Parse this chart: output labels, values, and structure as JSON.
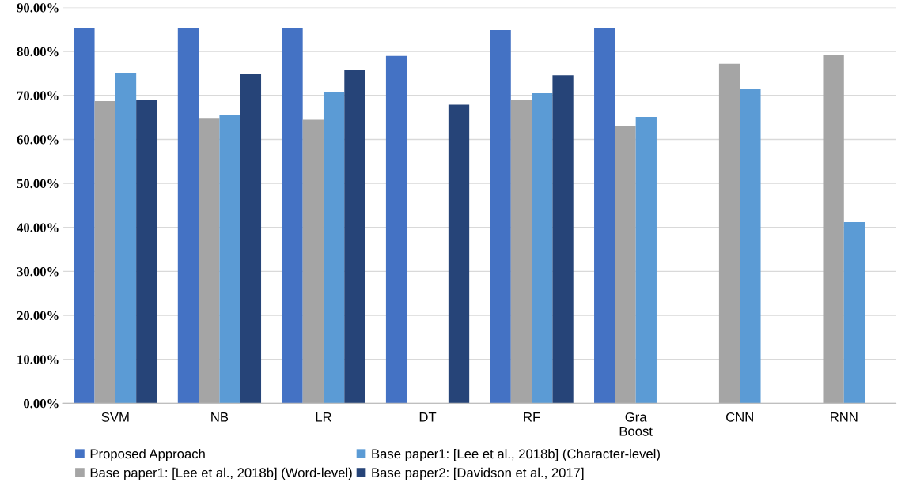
{
  "chart_data": {
    "type": "bar",
    "categories": [
      "SVM",
      "NB",
      "LR",
      "DT",
      "RF",
      "Gra\nBoost",
      "CNN",
      "RNN"
    ],
    "series": [
      {
        "name": "Proposed Approach",
        "color": "#4472c4",
        "values": [
          85.3,
          85.3,
          85.3,
          79.0,
          84.9,
          85.3,
          null,
          null
        ]
      },
      {
        "name": "Base paper1: [Lee et al., 2018b] (Word-level)",
        "color": "#a5a5a5",
        "values": [
          68.7,
          64.9,
          64.5,
          null,
          69.0,
          63.0,
          77.2,
          79.2
        ]
      },
      {
        "name": "Base paper1: [Lee et al., 2018b] (Character-level)",
        "color": "#5b9bd5",
        "values": [
          75.1,
          65.6,
          70.8,
          null,
          70.5,
          65.1,
          71.5,
          41.2
        ]
      },
      {
        "name": "Base paper2: [Davidson et al., 2017]",
        "color": "#264478",
        "values": [
          69.0,
          74.8,
          75.9,
          67.9,
          74.6,
          null,
          null,
          null
        ]
      }
    ],
    "ylim": [
      0,
      90
    ],
    "yticks": [
      {
        "value": 0,
        "label": "0.00%"
      },
      {
        "value": 10,
        "label": "10.00%"
      },
      {
        "value": 20,
        "label": "20.00%"
      },
      {
        "value": 30,
        "label": "30.00%"
      },
      {
        "value": 40,
        "label": "40.00%"
      },
      {
        "value": 50,
        "label": "50.00%"
      },
      {
        "value": 60,
        "label": "60.00%"
      },
      {
        "value": 70,
        "label": "70.00%"
      },
      {
        "value": 80,
        "label": "80.00%"
      },
      {
        "value": 90,
        "label": "90.00%"
      }
    ],
    "grid": "y",
    "legend": "bottom"
  }
}
